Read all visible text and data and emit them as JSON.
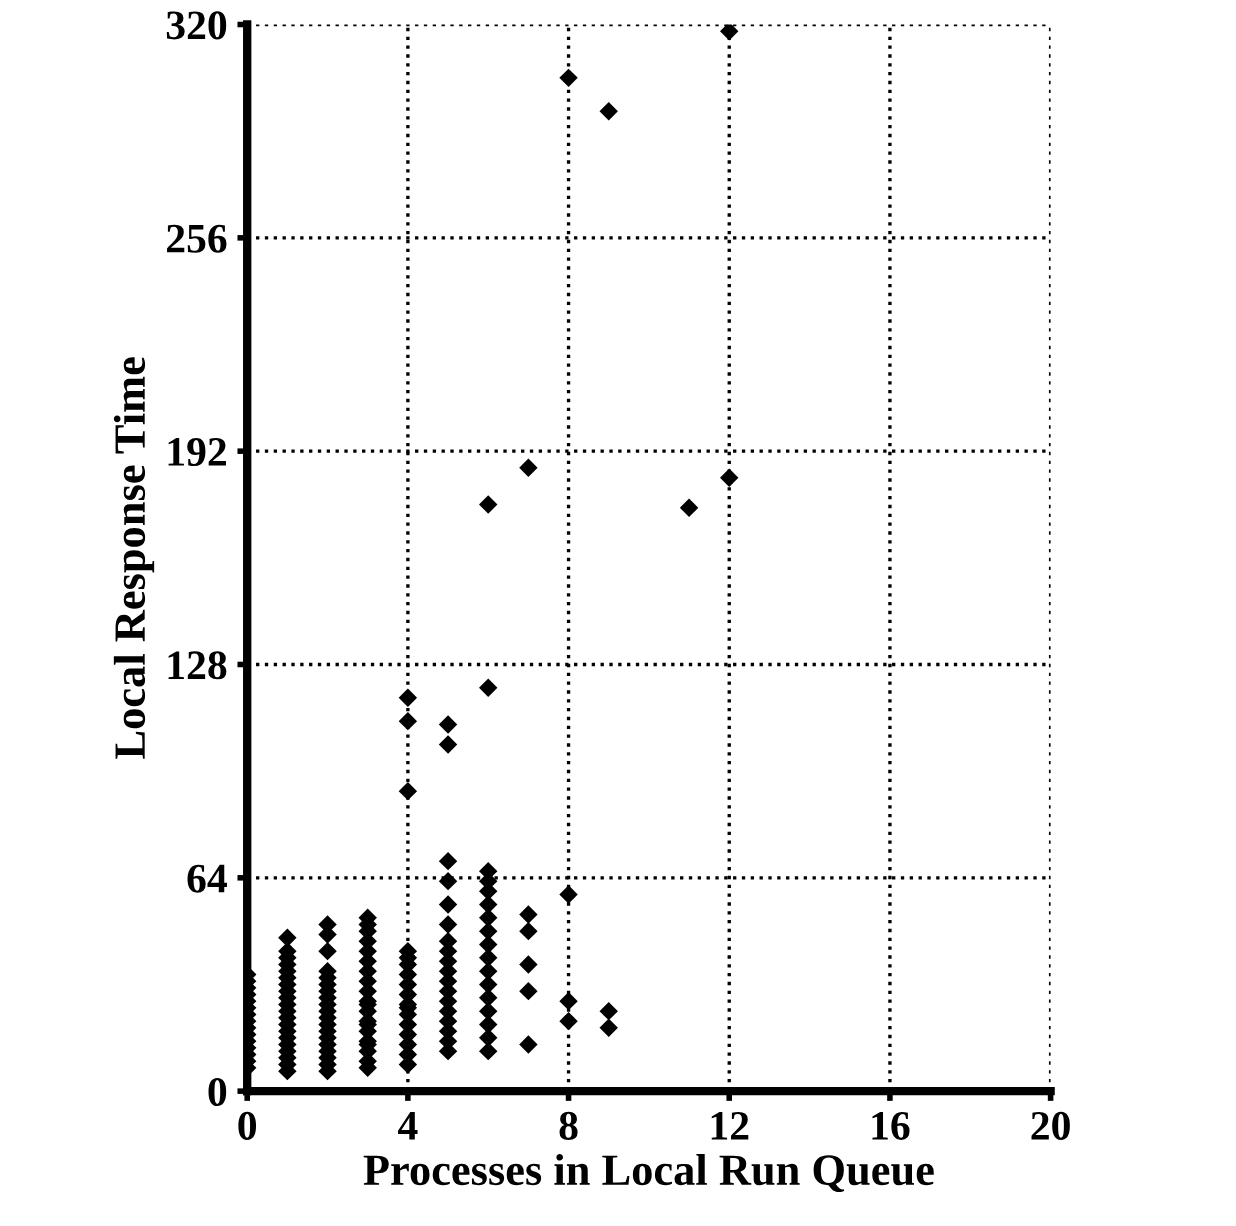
{
  "chart_data": {
    "type": "scatter",
    "xlabel": "Processes in Local Run Queue",
    "ylabel": "Local Response Time",
    "xlim": [
      0,
      20
    ],
    "ylim": [
      0,
      320
    ],
    "xticks": [
      0,
      4,
      8,
      12,
      16,
      20
    ],
    "yticks": [
      0,
      64,
      128,
      192,
      256,
      320
    ],
    "grid": true,
    "marker": "diamond",
    "series": [
      {
        "color": "#000000",
        "x": [
          0,
          0,
          0,
          0,
          0,
          0,
          0,
          0,
          0,
          0,
          0,
          0,
          0,
          0,
          0,
          1,
          1,
          1,
          1,
          1,
          1,
          1,
          1,
          1,
          1,
          1,
          1,
          1,
          1,
          1,
          1,
          1,
          1,
          1,
          1,
          2,
          2,
          2,
          2,
          2,
          2,
          2,
          2,
          2,
          2,
          2,
          2,
          2,
          2,
          2,
          2,
          2,
          2,
          2,
          3,
          3,
          3,
          3,
          3,
          3,
          3,
          3,
          3,
          3,
          3,
          3,
          3,
          3,
          3,
          3,
          3,
          3,
          3,
          3,
          4,
          4,
          4,
          4,
          4,
          4,
          4,
          4,
          4,
          4,
          4,
          4,
          4,
          4,
          4,
          4,
          4,
          5,
          5,
          5,
          5,
          5,
          5,
          5,
          5,
          5,
          5,
          5,
          5,
          5,
          5,
          5,
          5,
          5,
          5,
          6,
          6,
          6,
          6,
          6,
          6,
          6,
          6,
          6,
          6,
          6,
          6,
          6,
          6,
          6,
          6,
          6,
          7,
          7,
          7,
          7,
          7,
          7,
          8,
          8,
          8,
          8,
          9,
          9,
          9,
          11,
          12,
          12
        ],
        "values": [
          7,
          9,
          11,
          13,
          15,
          17,
          19,
          21,
          23,
          25,
          27,
          29,
          31,
          33,
          35,
          6,
          8,
          10,
          12,
          14,
          16,
          18,
          20,
          22,
          24,
          26,
          28,
          30,
          32,
          34,
          36,
          38,
          40,
          42,
          46,
          6,
          8,
          10,
          12,
          14,
          16,
          18,
          20,
          22,
          24,
          26,
          28,
          30,
          32,
          34,
          36,
          42,
          47,
          50,
          7,
          9,
          12,
          15,
          18,
          21,
          24,
          27,
          30,
          33,
          36,
          39,
          42,
          45,
          48,
          50,
          52,
          14,
          20,
          26,
          8,
          11,
          14,
          17,
          20,
          23,
          26,
          29,
          32,
          35,
          38,
          40,
          42,
          90,
          111,
          118,
          25,
          12,
          15,
          18,
          21,
          24,
          27,
          30,
          33,
          36,
          39,
          42,
          45,
          50,
          56,
          63,
          69,
          104,
          110,
          12,
          16,
          20,
          24,
          28,
          32,
          36,
          40,
          44,
          48,
          52,
          56,
          60,
          63,
          66,
          121,
          176,
          14,
          30,
          38,
          48,
          53,
          187,
          21,
          27,
          59,
          304,
          19,
          24,
          294,
          175,
          184,
          318
        ]
      }
    ]
  }
}
